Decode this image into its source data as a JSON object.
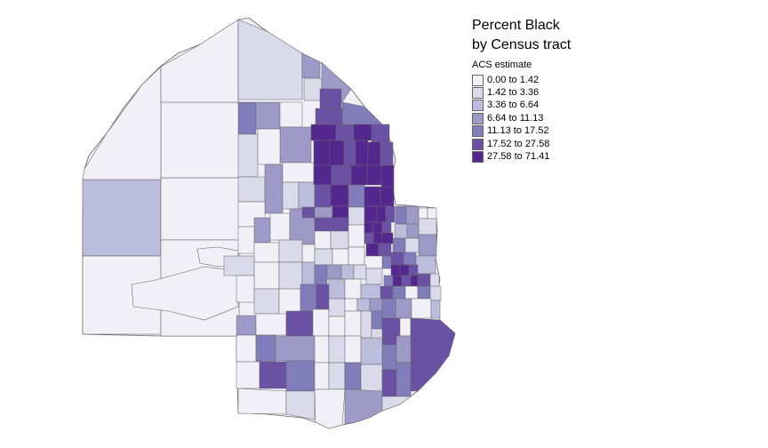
{
  "legend": {
    "title_line1": "Percent Black",
    "title_line2": "by Census tract",
    "subtitle": "ACS estimate",
    "classes": [
      {
        "label": "0.00 to 1.42",
        "color": "#f2f0f7"
      },
      {
        "label": "1.42 to 3.36",
        "color": "#dadaeb"
      },
      {
        "label": "3.36 to 6.64",
        "color": "#bcbddc"
      },
      {
        "label": "6.64 to 11.13",
        "color": "#9e9ac8"
      },
      {
        "label": "11.13 to 17.52",
        "color": "#807dba"
      },
      {
        "label": "17.52 to 27.58",
        "color": "#6a51a3"
      },
      {
        "label": "27.58 to 71.41",
        "color": "#54278f"
      }
    ]
  },
  "map": {
    "type": "choropleth",
    "variable": "Percent Black",
    "boundary_color": "#666666"
  }
}
